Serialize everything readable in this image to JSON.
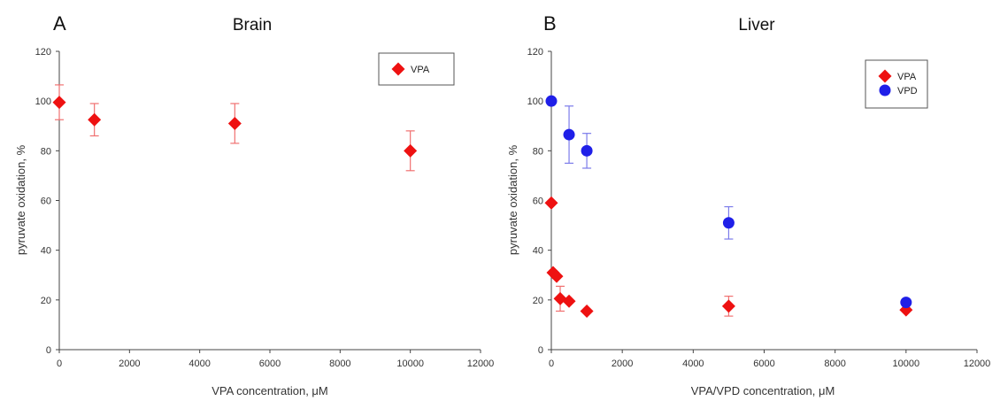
{
  "chart_data": [
    {
      "type": "scatter",
      "panel_letter": "A",
      "title": "Brain",
      "xlabel": "VPA concentration, μM",
      "ylabel": "pyruvate oxidation, %",
      "xlim": [
        0,
        12000
      ],
      "ylim": [
        0,
        120
      ],
      "xticks": [
        0,
        2000,
        4000,
        6000,
        8000,
        10000,
        12000
      ],
      "yticks": [
        0,
        20,
        40,
        60,
        80,
        100,
        120
      ],
      "grid": false,
      "legend": "top-right",
      "series": [
        {
          "name": "VPA",
          "marker": "diamond",
          "color": "#ee1111",
          "points": [
            {
              "x": 0,
              "y": 99.5,
              "err": 7
            },
            {
              "x": 1000,
              "y": 92.5,
              "err": 6.5
            },
            {
              "x": 5000,
              "y": 91,
              "err": 8
            },
            {
              "x": 10000,
              "y": 80,
              "err": 8
            }
          ]
        }
      ]
    },
    {
      "type": "scatter",
      "panel_letter": "B",
      "title": "Liver",
      "xlabel": "VPA/VPD concentration, μM",
      "ylabel": "pyruvate oxidation, %",
      "xlim": [
        0,
        12000
      ],
      "ylim": [
        0,
        120
      ],
      "xticks": [
        0,
        2000,
        4000,
        6000,
        8000,
        10000,
        12000
      ],
      "yticks": [
        0,
        20,
        40,
        60,
        80,
        100,
        120
      ],
      "grid": false,
      "legend": "top-right",
      "series": [
        {
          "name": "VPA",
          "marker": "diamond",
          "color": "#ee1111",
          "points": [
            {
              "x": 0,
              "y": 59,
              "err": 0
            },
            {
              "x": 50,
              "y": 31,
              "err": 0
            },
            {
              "x": 150,
              "y": 29.5,
              "err": 0
            },
            {
              "x": 250,
              "y": 20.5,
              "err": 5
            },
            {
              "x": 500,
              "y": 19.5,
              "err": 0
            },
            {
              "x": 1000,
              "y": 15.5,
              "err": 0
            },
            {
              "x": 5000,
              "y": 17.5,
              "err": 4
            },
            {
              "x": 10000,
              "y": 16,
              "err": 0
            }
          ]
        },
        {
          "name": "VPD",
          "marker": "circle",
          "color": "#1f1fe8",
          "points": [
            {
              "x": 0,
              "y": 100,
              "err": 0
            },
            {
              "x": 500,
              "y": 86.5,
              "err": 11.5
            },
            {
              "x": 1000,
              "y": 80,
              "err": 7
            },
            {
              "x": 5000,
              "y": 51,
              "err": 6.5
            },
            {
              "x": 10000,
              "y": 19,
              "err": 0
            }
          ]
        }
      ]
    }
  ]
}
